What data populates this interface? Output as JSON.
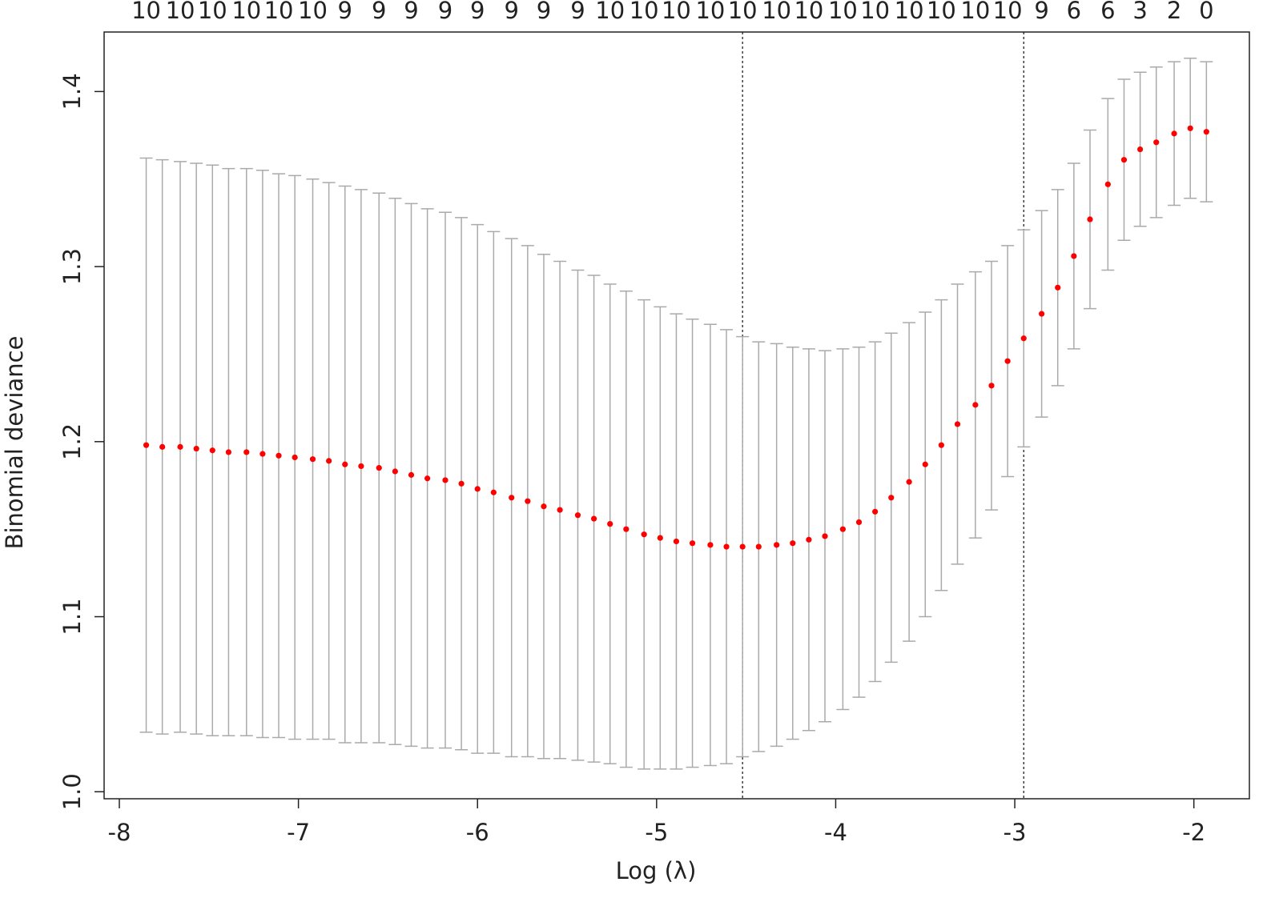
{
  "chart_data": {
    "type": "errorbar",
    "x_label": "Log (λ)",
    "y_label": "Binomial deviance",
    "x": [
      -7.85,
      -7.76,
      -7.66,
      -7.57,
      -7.48,
      -7.39,
      -7.29,
      -7.2,
      -7.11,
      -7.02,
      -6.92,
      -6.83,
      -6.74,
      -6.65,
      -6.55,
      -6.46,
      -6.37,
      -6.28,
      -6.18,
      -6.09,
      -6.0,
      -5.91,
      -5.81,
      -5.72,
      -5.63,
      -5.54,
      -5.44,
      -5.35,
      -5.26,
      -5.17,
      -5.07,
      -4.98,
      -4.89,
      -4.8,
      -4.7,
      -4.61,
      -4.52,
      -4.43,
      -4.33,
      -4.24,
      -4.15,
      -4.06,
      -3.96,
      -3.87,
      -3.78,
      -3.69,
      -3.59,
      -3.5,
      -3.41,
      -3.32,
      -3.22,
      -3.13,
      -3.04,
      -2.95,
      -2.85,
      -2.76,
      -2.67,
      -2.58,
      -2.48,
      -2.39,
      -2.3,
      -2.21,
      -2.11,
      -2.02,
      -1.93
    ],
    "series": [
      {
        "color": "#ff0000",
        "error_color": "#aaaaaa",
        "values": [
          1.198,
          1.197,
          1.197,
          1.196,
          1.195,
          1.194,
          1.194,
          1.193,
          1.192,
          1.191,
          1.19,
          1.189,
          1.187,
          1.186,
          1.185,
          1.183,
          1.181,
          1.179,
          1.178,
          1.176,
          1.173,
          1.171,
          1.168,
          1.166,
          1.163,
          1.161,
          1.158,
          1.156,
          1.153,
          1.15,
          1.147,
          1.145,
          1.143,
          1.142,
          1.141,
          1.14,
          1.14,
          1.14,
          1.141,
          1.142,
          1.144,
          1.146,
          1.15,
          1.154,
          1.16,
          1.168,
          1.177,
          1.187,
          1.198,
          1.21,
          1.221,
          1.232,
          1.246,
          1.259,
          1.273,
          1.288,
          1.306,
          1.327,
          1.347,
          1.361,
          1.367,
          1.371,
          1.376,
          1.379,
          1.377
        ],
        "errors": [
          0.164,
          0.164,
          0.163,
          0.163,
          0.163,
          0.162,
          0.162,
          0.162,
          0.161,
          0.161,
          0.16,
          0.159,
          0.159,
          0.158,
          0.157,
          0.156,
          0.155,
          0.154,
          0.153,
          0.152,
          0.151,
          0.149,
          0.148,
          0.146,
          0.144,
          0.142,
          0.14,
          0.139,
          0.137,
          0.136,
          0.134,
          0.132,
          0.13,
          0.128,
          0.126,
          0.124,
          0.12,
          0.117,
          0.115,
          0.112,
          0.109,
          0.106,
          0.103,
          0.1,
          0.097,
          0.094,
          0.091,
          0.087,
          0.083,
          0.08,
          0.076,
          0.071,
          0.066,
          0.062,
          0.059,
          0.056,
          0.053,
          0.051,
          0.049,
          0.046,
          0.044,
          0.043,
          0.041,
          0.04,
          0.04
        ]
      }
    ],
    "nonzero": [
      10,
      10,
      10,
      10,
      10,
      10,
      9,
      9,
      9,
      9,
      9,
      9,
      9,
      9,
      10,
      10,
      10,
      10,
      10,
      10,
      10,
      10,
      10,
      10,
      10,
      10,
      10,
      9,
      6,
      6,
      3,
      2,
      0
    ],
    "vlines": [
      -4.52,
      -2.95
    ],
    "xlim": [
      -8.085,
      -1.69
    ],
    "ylim": [
      0.996,
      1.434
    ],
    "xticks": [
      -8,
      -7,
      -6,
      -5,
      -4,
      -3,
      -2
    ],
    "yticks": [
      {
        "value": 1.0,
        "label": "1.0"
      },
      1.1,
      1.2,
      1.3,
      1.4
    ]
  }
}
